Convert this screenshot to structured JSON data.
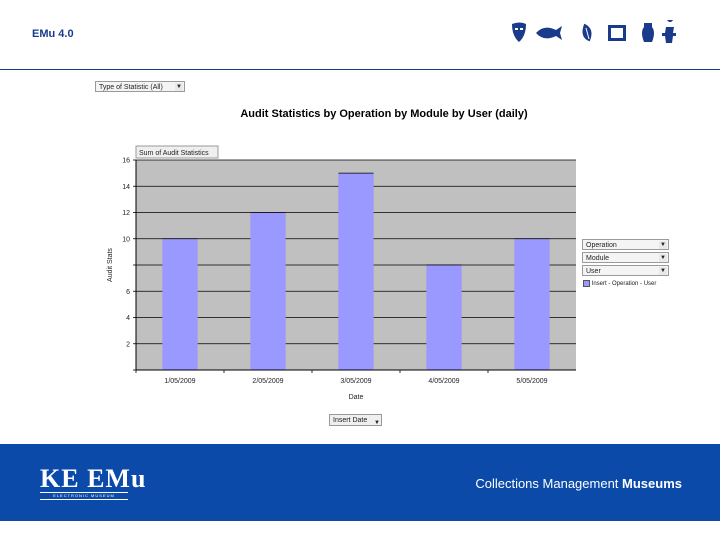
{
  "app": {
    "title": "EMu 4.0"
  },
  "page_filter": {
    "label": "Type of Statistic",
    "value": "(All)"
  },
  "chart_data": {
    "type": "bar",
    "title": "Audit Statistics by Operation by Module by User (daily)",
    "data_field_label": "Sum of Audit Statistics",
    "xlabel": "Date",
    "ylabel": "Audit Stats",
    "categories": [
      "1/05/2009",
      "2/05/2009",
      "3/05/2009",
      "4/05/2009",
      "5/05/2009"
    ],
    "values": [
      10,
      12,
      15,
      8,
      10
    ],
    "ylim": [
      0,
      16
    ],
    "y_ticks": [
      "",
      "2",
      "4",
      "6",
      "",
      "10",
      "12",
      "14",
      "16"
    ],
    "grid": true,
    "bar_color": "#9999ff",
    "plot_background": "#c0c0c0",
    "legend_position": "right"
  },
  "legend_fields": [
    {
      "label": "Operation"
    },
    {
      "label": "Module"
    },
    {
      "label": "User"
    }
  ],
  "legend_series": {
    "label": "Insert - Operation - User"
  },
  "x_field": {
    "label": "Insert Date"
  },
  "footer": {
    "logo_text": "KE EMu",
    "logo_sub": "ELECTRONIC MUSEUM",
    "tagline_regular": "Collections Management",
    "tagline_bold": "Museums",
    "background": "#0b4aa8"
  },
  "logo_icons": [
    "mask-icon",
    "fish-icon",
    "leaf-icon",
    "frame-icon",
    "vase-icon",
    "figure-icon"
  ]
}
